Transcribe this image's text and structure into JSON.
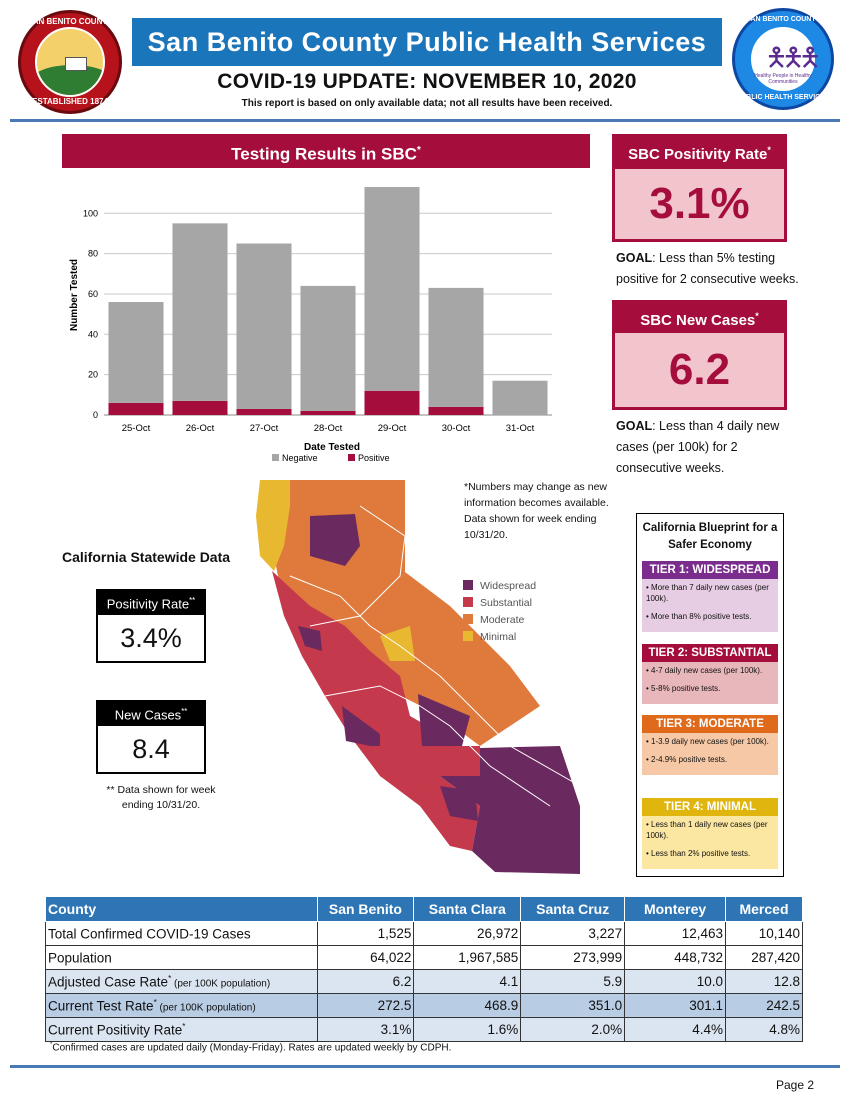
{
  "header": {
    "title": "San Benito County Public Health Services",
    "update": "COVID-19 UPDATE: NOVEMBER 10, 2020",
    "subtitle": "This report is based on only available data; not all results have been received.",
    "left_seal_top": "SAN BENITO COUNTY",
    "left_seal_bottom": "ESTABLISHED 1874",
    "right_seal_top": "SAN BENITO COUNTY",
    "right_seal_mid": "Healthy People in Healthy Communities",
    "right_seal_bottom": "PUBLIC HEALTH SERVICES"
  },
  "testing": {
    "title": "Testing Results in SBC",
    "asterisk": "*"
  },
  "chart_data": {
    "type": "bar",
    "stacked": true,
    "categories": [
      "25-Oct",
      "26-Oct",
      "27-Oct",
      "28-Oct",
      "29-Oct",
      "30-Oct",
      "31-Oct"
    ],
    "series": [
      {
        "name": "Negative",
        "color": "#a6a6a6",
        "values": [
          50,
          88,
          82,
          62,
          101,
          59,
          17
        ]
      },
      {
        "name": "Positive",
        "color": "#a50d3d",
        "values": [
          6,
          7,
          3,
          2,
          12,
          4,
          0
        ]
      }
    ],
    "xlabel": "Date Tested",
    "ylabel": "Number Tested",
    "ylim": [
      0,
      115
    ],
    "yticks": [
      0,
      20,
      40,
      60,
      80,
      100
    ],
    "grid": true,
    "legend": "bottom"
  },
  "sbc": {
    "positivity_title": "SBC Positivity Rate",
    "positivity_value": "3.1%",
    "positivity_goal_label": "GOAL",
    "positivity_goal_text": ": Less than 5% testing positive for 2 consecutive weeks.",
    "cases_title": "SBC New Cases",
    "cases_value": "6.2",
    "cases_goal_label": "GOAL",
    "cases_goal_text": ": Less than 4 daily new cases (per 100k) for 2 consecutive weeks.",
    "asterisk": "*"
  },
  "statewide": {
    "heading": "California Statewide Data",
    "positivity_label": "Positivity Rate",
    "positivity_value": "3.4%",
    "cases_label": "New Cases",
    "cases_value": "8.4",
    "dstar": "**",
    "note": "** Data shown for week ending  10/31/20."
  },
  "map": {
    "note": "*Numbers may change as new information becomes available. Data shown for week ending 10/31/20.",
    "legend": [
      {
        "label": "Widespread",
        "color": "#6b2a5f"
      },
      {
        "label": "Substantial",
        "color": "#c4394b"
      },
      {
        "label": "Moderate",
        "color": "#e07a3c"
      },
      {
        "label": "Minimal",
        "color": "#e8b830"
      }
    ]
  },
  "blueprint": {
    "title": "California Blueprint for a Safer Economy",
    "tiers": [
      {
        "name": "TIER 1: WIDESPREAD",
        "head": "#7b2d8e",
        "body": "#e6cde3",
        "line1": "• More than 7 daily new cases (per 100k).",
        "line2": "• More than 8% positive tests."
      },
      {
        "name": "TIER 2: SUBSTANTIAL",
        "head": "#a50d3d",
        "body": "#e8b7bc",
        "line1": "• 4-7 daily new cases (per 100k).",
        "line2": "• 5-8% positive tests."
      },
      {
        "name": "TIER 3: MODERATE",
        "head": "#e06a1b",
        "body": "#f6c8a6",
        "line1": "• 1-3.9 daily new cases (per 100k).",
        "line2": "• 2-4.9% positive tests."
      },
      {
        "name": "TIER 4: MINIMAL",
        "head": "#e0b50e",
        "body": "#fbe6a2",
        "line1": "• Less than 1 daily new cases (per 100k).",
        "line2": "• Less than 2% positive tests."
      }
    ]
  },
  "table": {
    "headers": [
      "County",
      "San Benito",
      "Santa Clara",
      "Santa Cruz",
      "Monterey",
      "Merced"
    ],
    "rows": [
      {
        "label": "Total Confirmed COVID-19 Cases",
        "sup": "",
        "small": "",
        "values": [
          "1,525",
          "26,972",
          "3,227",
          "12,463",
          "10,140"
        ]
      },
      {
        "label": "Population",
        "sup": "",
        "small": "",
        "values": [
          "64,022",
          "1,967,585",
          "273,999",
          "448,732",
          "287,420"
        ]
      },
      {
        "label": "Adjusted Case Rate",
        "sup": "*",
        "small": " (per 100K population)",
        "values": [
          "6.2",
          "4.1",
          "5.9",
          "10.0",
          "12.8"
        ]
      },
      {
        "label": "Current Test Rate",
        "sup": "*",
        "small": " (per 100K population)",
        "values": [
          "272.5",
          "468.9",
          "351.0",
          "301.1",
          "242.5"
        ]
      },
      {
        "label": "Current Positivity Rate",
        "sup": "*",
        "small": "",
        "values": [
          "3.1%",
          "1.6%",
          "2.0%",
          "4.4%",
          "4.8%"
        ]
      }
    ],
    "footnote_mark": "*",
    "footnote": "Confirmed cases are updated daily (Monday-Friday). Rates are updated weekly by CDPH."
  },
  "page_label": "Page 2"
}
